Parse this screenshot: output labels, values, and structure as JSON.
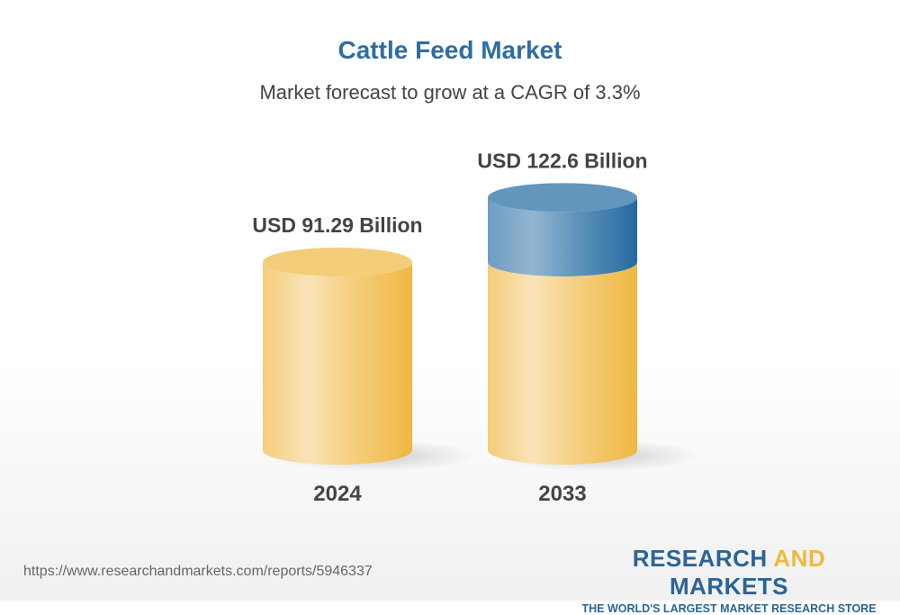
{
  "chart_data": {
    "type": "bar",
    "style": "3d-cylinder",
    "title": "Cattle Feed Market",
    "subtitle": "Market forecast to grow at a CAGR of 3.3%",
    "categories": [
      "2024",
      "2033"
    ],
    "values": [
      91.29,
      122.6
    ],
    "data_labels": [
      "USD 91.29 Billion",
      "USD 122.6 Billion"
    ],
    "unit": "USD Billion",
    "colors": {
      "base": "#f0b840",
      "growth": "#2e6da4",
      "title": "#2e6da4"
    }
  },
  "footer": {
    "url": "https://www.researchandmarkets.com/reports/5946337",
    "logo_part1": "RESEARCH ",
    "logo_part2": "AND",
    "logo_part3": " MARKETS",
    "logo_tagline": "THE WORLD'S LARGEST MARKET RESEARCH STORE"
  }
}
